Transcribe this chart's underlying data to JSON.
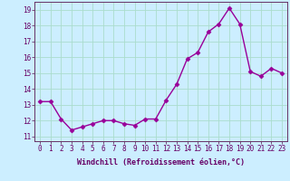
{
  "x": [
    0,
    1,
    2,
    3,
    4,
    5,
    6,
    7,
    8,
    9,
    10,
    11,
    12,
    13,
    14,
    15,
    16,
    17,
    18,
    19,
    20,
    21,
    22,
    23
  ],
  "y": [
    13.2,
    13.2,
    12.1,
    11.4,
    11.6,
    11.8,
    12.0,
    12.0,
    11.8,
    11.7,
    12.1,
    12.1,
    13.3,
    14.3,
    15.9,
    16.3,
    17.6,
    18.1,
    19.1,
    18.1,
    15.1,
    14.8,
    15.3,
    15.0
  ],
  "line_color": "#990099",
  "marker": "D",
  "markersize": 2.5,
  "linewidth": 1.0,
  "bg_color": "#cceeff",
  "grid_color": "#aaddcc",
  "xlabel": "Windchill (Refroidissement éolien,°C)",
  "ylim": [
    10.7,
    19.5
  ],
  "xlim": [
    -0.5,
    23.5
  ],
  "yticks": [
    11,
    12,
    13,
    14,
    15,
    16,
    17,
    18,
    19
  ],
  "xticks": [
    0,
    1,
    2,
    3,
    4,
    5,
    6,
    7,
    8,
    9,
    10,
    11,
    12,
    13,
    14,
    15,
    16,
    17,
    18,
    19,
    20,
    21,
    22,
    23
  ],
  "tick_fontsize": 5.5,
  "xlabel_fontsize": 6.0,
  "spine_color": "#663366",
  "text_color": "#660066"
}
